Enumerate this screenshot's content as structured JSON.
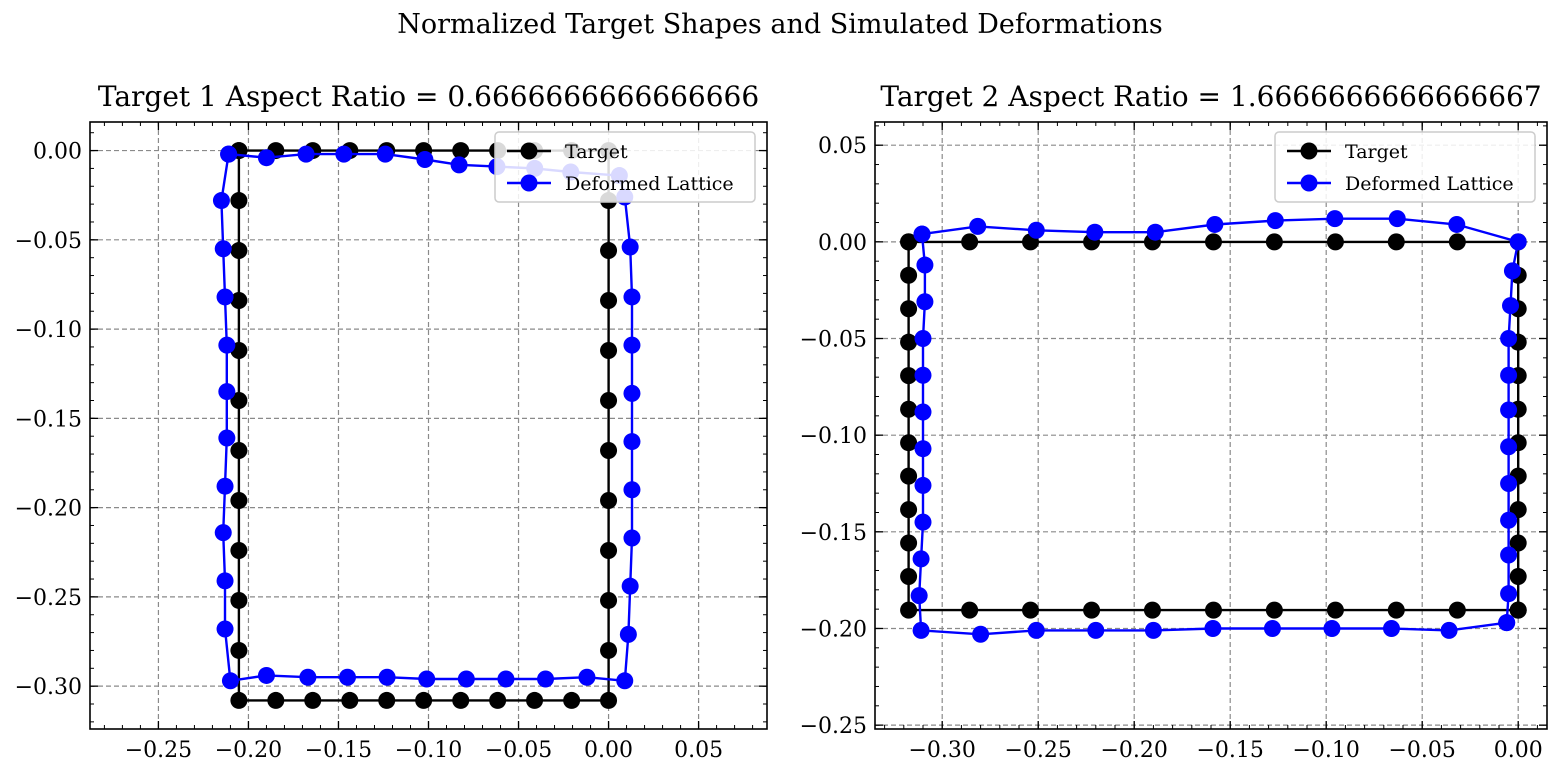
{
  "figure": {
    "suptitle": "Normalized Target Shapes and Simulated Deformations"
  },
  "chart_data": [
    {
      "type": "line",
      "title": "Target 1 Aspect Ratio = 0.6666666666666666",
      "xlabel": "",
      "ylabel": "",
      "xlim": [
        -0.288,
        0.088
      ],
      "ylim": [
        -0.324,
        0.016
      ],
      "xticks": [
        -0.25,
        -0.2,
        -0.15,
        -0.1,
        -0.05,
        0.0,
        0.05
      ],
      "xtick_labels": [
        "−0.25",
        "−0.20",
        "−0.15",
        "−0.10",
        "−0.05",
        "0.00",
        "0.05"
      ],
      "yticks": [
        0.0,
        -0.05,
        -0.1,
        -0.15,
        -0.2,
        -0.25,
        -0.3
      ],
      "ytick_labels": [
        "0.00",
        "−0.05",
        "−0.10",
        "−0.15",
        "−0.20",
        "−0.25",
        "−0.30"
      ],
      "grid": true,
      "legend": {
        "placement": "top-right",
        "entries": [
          "Target",
          "Deformed Lattice"
        ]
      },
      "series": [
        {
          "name": "Target",
          "color": "#000000",
          "x": [
            -0.2053,
            -0.1848,
            -0.1643,
            -0.1437,
            -0.1232,
            -0.1027,
            -0.0821,
            -0.0616,
            -0.0411,
            -0.0205,
            0,
            0,
            0,
            0,
            0,
            0,
            0,
            0,
            0,
            0,
            0,
            0,
            -0.0205,
            -0.0411,
            -0.0616,
            -0.0821,
            -0.1027,
            -0.1232,
            -0.1437,
            -0.1643,
            -0.1848,
            -0.2053,
            -0.2053,
            -0.2053,
            -0.2053,
            -0.2053,
            -0.2053,
            -0.2053,
            -0.2053,
            -0.2053,
            -0.2053,
            -0.2053,
            -0.2053
          ],
          "y": [
            0,
            0,
            0,
            0,
            0,
            0,
            0,
            0,
            0,
            0,
            0,
            -0.028,
            -0.056,
            -0.084,
            -0.112,
            -0.14,
            -0.168,
            -0.196,
            -0.224,
            -0.252,
            -0.28,
            -0.308,
            -0.308,
            -0.308,
            -0.308,
            -0.308,
            -0.308,
            -0.308,
            -0.308,
            -0.308,
            -0.308,
            -0.308,
            -0.28,
            -0.252,
            -0.224,
            -0.196,
            -0.168,
            -0.14,
            -0.112,
            -0.084,
            -0.056,
            -0.028,
            0
          ]
        },
        {
          "name": "Deformed Lattice",
          "color": "#0000ff",
          "x": [
            -0.211,
            -0.19,
            -0.168,
            -0.147,
            -0.124,
            -0.102,
            -0.083,
            -0.062,
            -0.041,
            -0.021,
            0.006,
            0.009,
            0.012,
            0.013,
            0.013,
            0.013,
            0.013,
            0.013,
            0.013,
            0.012,
            0.011,
            0.009,
            -0.012,
            -0.035,
            -0.057,
            -0.079,
            -0.101,
            -0.123,
            -0.145,
            -0.167,
            -0.19,
            -0.21,
            -0.213,
            -0.213,
            -0.214,
            -0.213,
            -0.212,
            -0.212,
            -0.212,
            -0.213,
            -0.214,
            -0.215,
            -0.211
          ],
          "y": [
            -0.002,
            -0.004,
            -0.002,
            -0.002,
            -0.002,
            -0.005,
            -0.008,
            -0.009,
            -0.01,
            -0.012,
            -0.014,
            -0.026,
            -0.054,
            -0.082,
            -0.109,
            -0.136,
            -0.163,
            -0.19,
            -0.217,
            -0.244,
            -0.271,
            -0.297,
            -0.295,
            -0.296,
            -0.296,
            -0.296,
            -0.296,
            -0.295,
            -0.295,
            -0.295,
            -0.294,
            -0.297,
            -0.268,
            -0.241,
            -0.214,
            -0.188,
            -0.161,
            -0.135,
            -0.109,
            -0.082,
            -0.055,
            -0.028,
            -0.002
          ]
        }
      ]
    },
    {
      "type": "line",
      "title": "Target 2 Aspect Ratio = 1.6666666666666667",
      "xlabel": "",
      "ylabel": "",
      "xlim": [
        -0.335,
        0.015
      ],
      "ylim": [
        -0.252,
        0.062
      ],
      "xticks": [
        -0.3,
        -0.25,
        -0.2,
        -0.15,
        -0.1,
        -0.05,
        0.0
      ],
      "xtick_labels": [
        "−0.30",
        "−0.25",
        "−0.20",
        "−0.15",
        "−0.10",
        "−0.05",
        "0.00"
      ],
      "yticks": [
        0.05,
        0.0,
        -0.05,
        -0.1,
        -0.15,
        -0.2,
        -0.25
      ],
      "ytick_labels": [
        "0.05",
        "0.00",
        "−0.05",
        "−0.10",
        "−0.15",
        "−0.20",
        "−0.25"
      ],
      "grid": true,
      "legend": {
        "placement": "top-right",
        "entries": [
          "Target",
          "Deformed Lattice"
        ]
      },
      "series": [
        {
          "name": "Target",
          "color": "#000000",
          "x": [
            -0.3175,
            -0.2857,
            -0.254,
            -0.2222,
            -0.1905,
            -0.1587,
            -0.127,
            -0.0952,
            -0.0635,
            -0.0317,
            0,
            0,
            0,
            0,
            0,
            0,
            0,
            0,
            0,
            0,
            0,
            0,
            0,
            -0.0317,
            -0.0635,
            -0.0952,
            -0.127,
            -0.1587,
            -0.1905,
            -0.2222,
            -0.254,
            -0.2857,
            -0.3175,
            -0.3175,
            -0.3175,
            -0.3175,
            -0.3175,
            -0.3175,
            -0.3175,
            -0.3175,
            -0.3175,
            -0.3175,
            -0.3175,
            -0.3175
          ],
          "y": [
            0,
            0,
            0,
            0,
            0,
            0,
            0,
            0,
            0,
            0,
            0,
            -0.0173,
            -0.0346,
            -0.0519,
            -0.0692,
            -0.0866,
            -0.1039,
            -0.1212,
            -0.1385,
            -0.1558,
            -0.1731,
            -0.1905,
            -0.1905,
            -0.1905,
            -0.1905,
            -0.1905,
            -0.1905,
            -0.1905,
            -0.1905,
            -0.1905,
            -0.1905,
            -0.1905,
            -0.1905,
            -0.1731,
            -0.1558,
            -0.1385,
            -0.1212,
            -0.1039,
            -0.0866,
            -0.0692,
            -0.0519,
            -0.0346,
            -0.0173,
            0
          ]
        },
        {
          "name": "Deformed Lattice",
          "color": "#0000ff",
          "x": [
            -0.3105,
            -0.2815,
            -0.251,
            -0.2205,
            -0.189,
            -0.158,
            -0.1265,
            -0.0955,
            -0.063,
            -0.032,
            0,
            -0.003,
            -0.004,
            -0.005,
            -0.005,
            -0.005,
            -0.005,
            -0.005,
            -0.005,
            -0.005,
            -0.005,
            -0.006,
            -0.006,
            -0.036,
            -0.066,
            -0.097,
            -0.128,
            -0.159,
            -0.19,
            -0.22,
            -0.251,
            -0.28,
            -0.311,
            -0.312,
            -0.311,
            -0.31,
            -0.31,
            -0.31,
            -0.31,
            -0.31,
            -0.31,
            -0.309,
            -0.309,
            -0.3105
          ],
          "y": [
            0.004,
            0.008,
            0.006,
            0.005,
            0.005,
            0.009,
            0.011,
            0.012,
            0.012,
            0.009,
            0,
            -0.015,
            -0.033,
            -0.05,
            -0.069,
            -0.087,
            -0.106,
            -0.125,
            -0.144,
            -0.162,
            -0.182,
            -0.197,
            -0.197,
            -0.201,
            -0.2,
            -0.2,
            -0.2,
            -0.2,
            -0.201,
            -0.201,
            -0.201,
            -0.203,
            -0.201,
            -0.183,
            -0.164,
            -0.145,
            -0.126,
            -0.107,
            -0.088,
            -0.069,
            -0.05,
            -0.031,
            -0.012,
            0.004
          ]
        }
      ]
    }
  ]
}
